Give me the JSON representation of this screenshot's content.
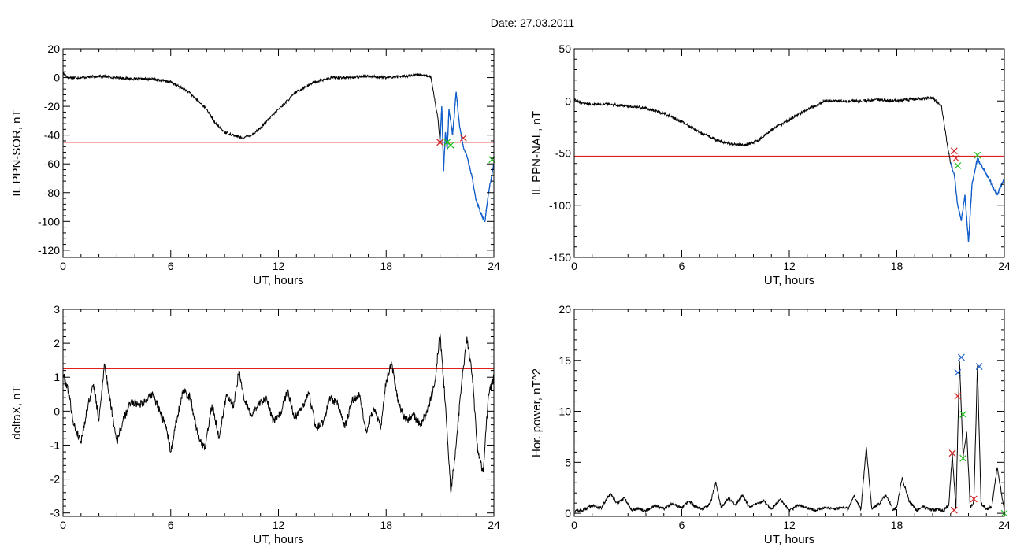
{
  "page": {
    "title": "Date:  27.03.2011"
  },
  "colors": {
    "trace": "#000000",
    "threshold": "#e0201c",
    "highlight": "#1060d0",
    "marker_red": "#d02020",
    "marker_green": "#20c020",
    "marker_blue": "#2060d0"
  },
  "chart_data": [
    {
      "id": "il-sor",
      "type": "line",
      "title": "",
      "xlabel": "UT, hours",
      "ylabel": "IL PPN-SOR, nT",
      "xlim": [
        0,
        24
      ],
      "ylim": [
        -125,
        20
      ],
      "xticks": [
        0,
        6,
        12,
        18,
        24
      ],
      "yticks": [
        20,
        0,
        -20,
        -40,
        -60,
        -80,
        -100,
        -120
      ],
      "threshold": -45,
      "x": [
        0,
        0.3,
        1,
        2,
        3,
        4,
        5,
        6,
        7,
        8,
        8.5,
        9,
        9.5,
        10,
        10.5,
        11,
        12,
        13,
        14,
        15,
        16,
        17,
        18,
        19,
        20,
        20.5,
        20.9,
        21.0,
        21.1,
        21.2,
        21.3,
        21.4,
        21.5,
        21.7,
        21.9,
        22.1,
        22.3,
        22.5,
        22.8,
        23.0,
        23.3,
        23.5,
        23.7,
        24
      ],
      "values": [
        3,
        0,
        0,
        1,
        0,
        -1,
        -1,
        -3,
        -10,
        -22,
        -32,
        -38,
        -40,
        -42,
        -40,
        -35,
        -22,
        -10,
        -3,
        0,
        0,
        1,
        0,
        1,
        2,
        0,
        -30,
        -45,
        -20,
        -65,
        -38,
        -50,
        -22,
        -40,
        -10,
        -35,
        -48,
        -55,
        -70,
        -85,
        -95,
        -100,
        -80,
        -60
      ],
      "highlight_from": 21.0,
      "markers": [
        {
          "x": 21.0,
          "y": -45,
          "color": "red"
        },
        {
          "x": 21.4,
          "y": -45,
          "color": "green"
        },
        {
          "x": 21.6,
          "y": -47,
          "color": "green"
        },
        {
          "x": 22.3,
          "y": -42,
          "color": "red"
        },
        {
          "x": 23.9,
          "y": -57,
          "color": "green"
        }
      ]
    },
    {
      "id": "il-nal",
      "type": "line",
      "title": "",
      "xlabel": "UT, hours",
      "ylabel": "IL PPN-NAL, nT",
      "xlim": [
        0,
        24
      ],
      "ylim": [
        -150,
        50
      ],
      "xticks": [
        0,
        6,
        12,
        18,
        24
      ],
      "yticks": [
        50,
        0,
        -50,
        -100,
        -150
      ],
      "threshold": -53,
      "x": [
        0,
        0.3,
        1,
        2,
        3,
        4,
        5,
        6,
        7,
        8,
        8.5,
        9,
        9.5,
        10,
        10.5,
        11,
        12,
        13,
        14,
        15,
        16,
        17,
        18,
        19,
        20,
        20.5,
        20.8,
        21.0,
        21.2,
        21.4,
        21.6,
        21.8,
        22.0,
        22.2,
        22.5,
        22.8,
        23.0,
        23.3,
        23.6,
        24
      ],
      "values": [
        2,
        -2,
        -3,
        -3,
        -5,
        -7,
        -12,
        -20,
        -30,
        -38,
        -40,
        -42,
        -42,
        -40,
        -35,
        -28,
        -18,
        -8,
        0,
        0,
        0,
        1,
        0,
        2,
        3,
        -5,
        -40,
        -60,
        -70,
        -100,
        -115,
        -90,
        -135,
        -80,
        -55,
        -65,
        -70,
        -80,
        -90,
        -75
      ],
      "highlight_from": 21.0,
      "markers": [
        {
          "x": 21.2,
          "y": -48,
          "color": "red"
        },
        {
          "x": 21.3,
          "y": -55,
          "color": "red"
        },
        {
          "x": 21.4,
          "y": -62,
          "color": "green"
        },
        {
          "x": 22.5,
          "y": -52,
          "color": "green"
        }
      ]
    },
    {
      "id": "deltax",
      "type": "line",
      "title": "",
      "xlabel": "UT, hours",
      "ylabel": "deltaX, nT",
      "xlim": [
        0,
        24
      ],
      "ylim": [
        -3.1,
        3
      ],
      "xticks": [
        0,
        6,
        12,
        18,
        24
      ],
      "yticks": [
        3,
        2,
        1,
        0,
        -1,
        -2,
        -3
      ],
      "threshold": 1.25,
      "x": [
        0,
        0.3,
        0.6,
        1.0,
        1.4,
        1.7,
        2.0,
        2.3,
        2.6,
        3.0,
        3.4,
        3.8,
        4.2,
        4.6,
        5.0,
        5.4,
        5.8,
        6.0,
        6.3,
        6.7,
        7.1,
        7.5,
        7.9,
        8.3,
        8.7,
        9.1,
        9.5,
        9.8,
        10.1,
        10.5,
        10.9,
        11.3,
        11.7,
        12.1,
        12.5,
        12.9,
        13.3,
        13.7,
        14.1,
        14.5,
        14.9,
        15.3,
        15.7,
        16.1,
        16.5,
        16.9,
        17.3,
        17.7,
        18.0,
        18.3,
        18.7,
        19.1,
        19.5,
        19.9,
        20.3,
        20.7,
        21.0,
        21.3,
        21.6,
        21.9,
        22.2,
        22.5,
        22.8,
        23.1,
        23.4,
        23.7,
        24
      ],
      "values": [
        1.1,
        0.6,
        -0.4,
        -0.9,
        0.2,
        0.8,
        -0.3,
        1.4,
        0.4,
        -0.9,
        -0.2,
        0.3,
        0.2,
        0.3,
        0.5,
        0.0,
        -0.6,
        -1.2,
        -0.3,
        0.6,
        0.4,
        -0.7,
        -1.1,
        0.2,
        -0.8,
        0.5,
        0.1,
        1.2,
        0.3,
        -0.1,
        0.2,
        0.4,
        -0.3,
        -0.1,
        0.6,
        -0.2,
        0.1,
        0.5,
        -0.5,
        -0.3,
        0.4,
        0.2,
        -0.5,
        0.3,
        0.5,
        -0.6,
        0.1,
        -0.5,
        0.9,
        1.4,
        0.2,
        -0.3,
        -0.1,
        -0.4,
        0.0,
        0.8,
        2.3,
        0.2,
        -2.4,
        -1.0,
        0.8,
        2.2,
        1.0,
        -1.2,
        -1.8,
        0.5,
        1.0
      ],
      "highlight_from": null,
      "markers": []
    },
    {
      "id": "hor-power",
      "type": "line",
      "title": "",
      "xlabel": "UT, hours",
      "ylabel": "Hor. power, nT^2",
      "xlim": [
        0,
        24
      ],
      "ylim": [
        -0.3,
        20
      ],
      "xticks": [
        0,
        6,
        12,
        18,
        24
      ],
      "yticks": [
        20,
        15,
        10,
        5,
        0
      ],
      "threshold": null,
      "x": [
        0,
        0.5,
        1.0,
        1.5,
        2.0,
        2.4,
        2.8,
        3.2,
        3.6,
        4.0,
        4.5,
        5.0,
        5.5,
        6.0,
        6.4,
        6.8,
        7.2,
        7.6,
        7.9,
        8.2,
        8.6,
        9.0,
        9.4,
        9.8,
        10.2,
        10.6,
        11.0,
        11.5,
        12.0,
        12.5,
        13.0,
        13.5,
        14.0,
        14.5,
        15.0,
        15.3,
        15.6,
        16.0,
        16.3,
        16.6,
        17.0,
        17.4,
        17.8,
        18.0,
        18.3,
        18.7,
        19.1,
        19.5,
        19.9,
        20.3,
        20.6,
        20.9,
        21.1,
        21.3,
        21.5,
        21.7,
        21.9,
        22.1,
        22.3,
        22.5,
        22.7,
        23.0,
        23.3,
        23.6,
        24
      ],
      "values": [
        0.2,
        0.3,
        0.8,
        0.5,
        1.9,
        1.0,
        1.5,
        0.3,
        0.5,
        0.2,
        0.8,
        0.4,
        1.0,
        0.5,
        1.2,
        0.6,
        0.4,
        1.0,
        3.1,
        0.5,
        1.5,
        0.8,
        1.8,
        0.5,
        1.0,
        1.2,
        0.4,
        1.4,
        0.3,
        0.8,
        0.5,
        0.3,
        0.6,
        0.4,
        0.6,
        0.4,
        1.7,
        0.4,
        6.5,
        0.5,
        0.9,
        1.8,
        0.3,
        0.6,
        3.5,
        1.1,
        0.3,
        0.6,
        0.3,
        0.4,
        0.2,
        0.8,
        5.8,
        0.4,
        15.0,
        5.5,
        8.0,
        0.5,
        1.2,
        14.5,
        1.0,
        0.4,
        0.6,
        4.5,
        0.2
      ],
      "highlight_from": null,
      "markers": [
        {
          "x": 21.1,
          "y": 5.9,
          "color": "red"
        },
        {
          "x": 21.2,
          "y": 0.3,
          "color": "red"
        },
        {
          "x": 21.4,
          "y": 11.5,
          "color": "red"
        },
        {
          "x": 21.4,
          "y": 13.8,
          "color": "blue"
        },
        {
          "x": 21.6,
          "y": 15.3,
          "color": "blue"
        },
        {
          "x": 21.7,
          "y": 9.7,
          "color": "green"
        },
        {
          "x": 21.7,
          "y": 5.4,
          "color": "green"
        },
        {
          "x": 22.3,
          "y": 1.4,
          "color": "red"
        },
        {
          "x": 22.6,
          "y": 14.4,
          "color": "blue"
        },
        {
          "x": 24.0,
          "y": 0.0,
          "color": "green"
        }
      ]
    }
  ]
}
